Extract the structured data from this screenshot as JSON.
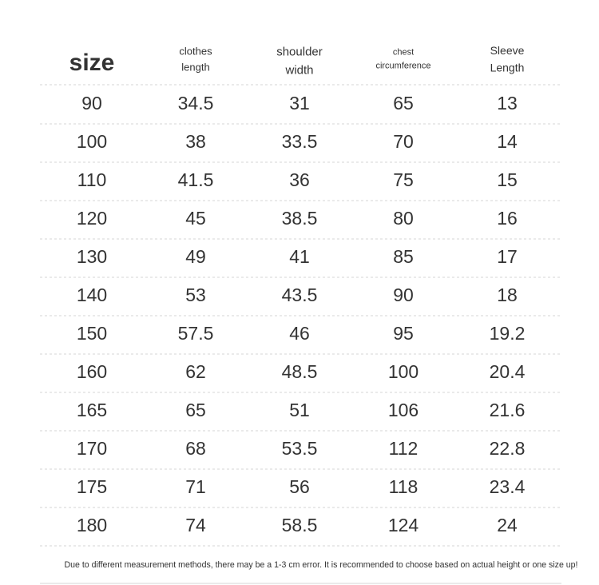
{
  "table": {
    "headers": [
      [
        "size"
      ],
      [
        "clothes",
        "length"
      ],
      [
        "shoulder",
        "width"
      ],
      [
        "chest",
        "circumference"
      ],
      [
        "Sleeve",
        "Length"
      ]
    ],
    "rows": [
      [
        90,
        34.5,
        31,
        65,
        13
      ],
      [
        100,
        38,
        33.5,
        70,
        14
      ],
      [
        110,
        41.5,
        36,
        75,
        15
      ],
      [
        120,
        45,
        38.5,
        80,
        16
      ],
      [
        130,
        49,
        41,
        85,
        17
      ],
      [
        140,
        53,
        43.5,
        90,
        18
      ],
      [
        150,
        57.5,
        46,
        95,
        19.2
      ],
      [
        160,
        62,
        48.5,
        100,
        20.4
      ],
      [
        165,
        65,
        51,
        106,
        21.6
      ],
      [
        170,
        68,
        53.5,
        112,
        22.8
      ],
      [
        175,
        71,
        56,
        118,
        23.4
      ],
      [
        180,
        74,
        58.5,
        124,
        24
      ]
    ]
  },
  "note": "Due to different measurement methods, there may be a 1-3 cm error. It is recommended to choose based on actual height or one size up!"
}
